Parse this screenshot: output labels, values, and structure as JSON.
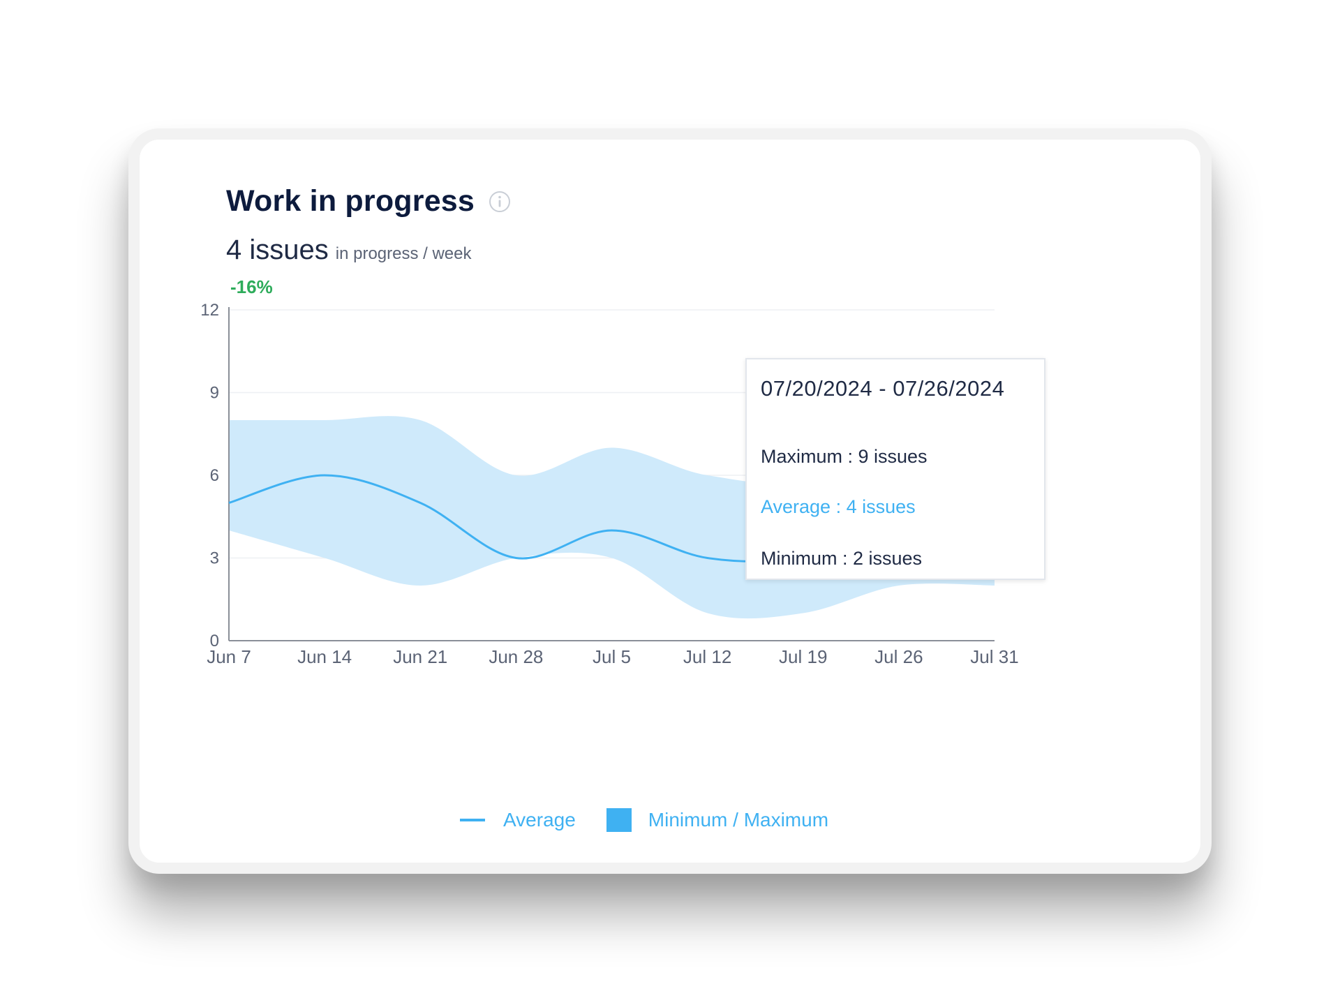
{
  "card": {
    "title": "Work in progress",
    "info_icon": "info-circle-icon",
    "metric_value": "4 issues",
    "metric_unit": "in progress / week",
    "delta": "-16%"
  },
  "tooltip": {
    "range": "07/20/2024 - 07/26/2024",
    "maximum": "Maximum : 9 issues",
    "average": "Average : 4 issues",
    "minimum": "Minimum : 2 issues"
  },
  "chart_data": {
    "type": "area",
    "title": "Work in progress",
    "xlabel": "",
    "ylabel": "",
    "x": [
      "Jun 7",
      "Jun 14",
      "Jun 21",
      "Jun 28",
      "Jul 5",
      "Jul 12",
      "Jul 19",
      "Jul 26",
      "Jul 31"
    ],
    "x_ticks": [
      "Jun 7",
      "Jun 14",
      "Jun 21",
      "Jun 28",
      "Jul 5",
      "Jul 12",
      "Jul 19",
      "Jul 26",
      "Jul 31"
    ],
    "y_ticks": [
      0,
      3,
      6,
      9,
      12
    ],
    "ylim": [
      0,
      12
    ],
    "grid": true,
    "legend_position": "bottom",
    "series": [
      {
        "name": "Average",
        "kind": "line",
        "color": "#3fb1f2",
        "values": [
          5,
          6,
          5,
          3,
          4,
          3,
          3,
          4,
          5
        ]
      },
      {
        "name": "Minimum / Maximum",
        "kind": "band",
        "color": "#cfeafb",
        "min": [
          4,
          3,
          2,
          3,
          3,
          1,
          1,
          2,
          2
        ],
        "max": [
          8,
          8,
          8,
          6,
          7,
          6,
          6,
          9,
          6
        ]
      }
    ],
    "highlight": {
      "x": "Jul 26",
      "value": 4
    }
  },
  "legend": {
    "average": "Average",
    "minmax": "Minimum / Maximum"
  },
  "colors": {
    "accent": "#3fb1f2",
    "band": "#cfeafb",
    "positive": "#2eac5b",
    "title": "#0d1b3d"
  }
}
